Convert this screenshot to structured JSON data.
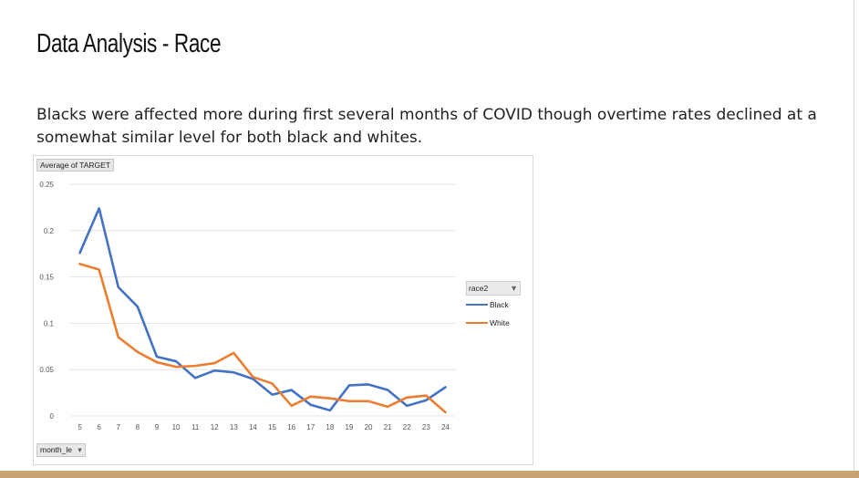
{
  "slide": {
    "title": "Data Analysis - Race",
    "body": "Blacks were affected more during first several months of COVID though overtime rates declined at a somewhat similar level for both black and whites."
  },
  "pivot": {
    "values_field": "Average of TARGET",
    "axis_field": "month_le",
    "axis_field_icon": "dropdown-icon",
    "legend_field": "race2",
    "legend_field_icon": "filter-icon"
  },
  "chart_data": {
    "type": "line",
    "x": [
      5,
      6,
      7,
      8,
      9,
      10,
      11,
      12,
      13,
      14,
      15,
      16,
      17,
      18,
      19,
      20,
      21,
      22,
      23,
      24
    ],
    "ylim": [
      0,
      0.25
    ],
    "yticks": [
      0,
      0.05,
      0.1,
      0.15,
      0.2,
      0.25
    ],
    "ytick_labels": [
      "0",
      "0.05",
      "0.1",
      "0.15",
      "0.2",
      "0.25"
    ],
    "grid": true,
    "legend_position": "right",
    "series": [
      {
        "name": "Black",
        "color": "#4472c4",
        "values": [
          0.176,
          0.224,
          0.139,
          0.118,
          0.064,
          0.059,
          0.041,
          0.049,
          0.047,
          0.04,
          0.023,
          0.028,
          0.012,
          0.006,
          0.033,
          0.034,
          0.028,
          0.011,
          0.017,
          0.031
        ]
      },
      {
        "name": "White",
        "color": "#ed7d31",
        "values": [
          0.164,
          0.158,
          0.085,
          0.069,
          0.058,
          0.053,
          0.054,
          0.057,
          0.068,
          0.042,
          0.035,
          0.011,
          0.021,
          0.019,
          0.016,
          0.016,
          0.01,
          0.02,
          0.022,
          0.004
        ]
      }
    ]
  }
}
